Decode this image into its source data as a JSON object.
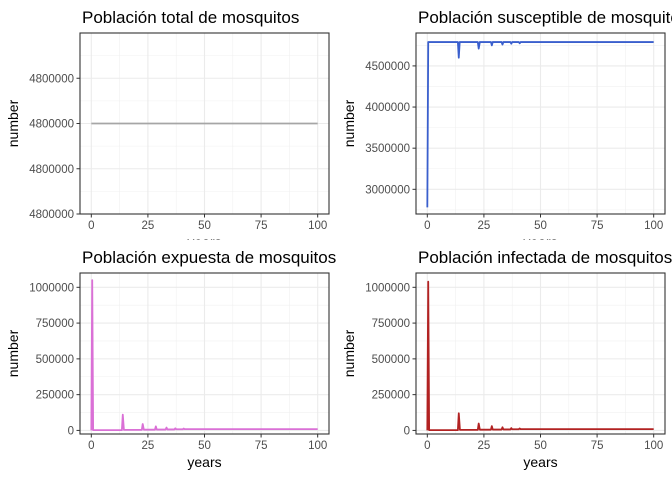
{
  "chart_data": [
    {
      "type": "line",
      "title": "Población total de mosquitos",
      "xlabel": "years",
      "ylabel": "number",
      "xlim": [
        -5,
        105
      ],
      "ylim": [
        0,
        4
      ],
      "xticks": [
        0,
        25,
        50,
        75,
        100
      ],
      "yticks": [
        0,
        1,
        2,
        3
      ],
      "ytick_labels": [
        "4800000",
        "4800000",
        "4800000",
        "4800000"
      ],
      "grid": true,
      "color": "#a6a6a6",
      "x": [
        0,
        100
      ],
      "y": [
        2,
        2
      ]
    },
    {
      "type": "line",
      "title": "Población susceptible de mosquitos",
      "xlabel": "years",
      "ylabel": "number",
      "xlim": [
        -5,
        105
      ],
      "ylim": [
        2700000,
        4900000
      ],
      "xticks": [
        0,
        25,
        50,
        75,
        100
      ],
      "yticks": [
        3000000,
        3500000,
        4000000,
        4500000
      ],
      "ytick_labels": [
        "3000000",
        "3500000",
        "4000000",
        "4500000"
      ],
      "grid": true,
      "color": "#3a5fcd",
      "x": [
        0,
        0.4,
        0.8,
        13.5,
        13.9,
        14.3,
        22.3,
        22.7,
        23.2,
        28.1,
        28.5,
        28.9,
        32.8,
        33.2,
        33.6,
        36.7,
        37.1,
        37.5,
        40.4,
        40.8,
        41.2,
        100
      ],
      "y": [
        2780000,
        4790000,
        4790000,
        4790000,
        4600000,
        4790000,
        4790000,
        4710000,
        4790000,
        4790000,
        4750000,
        4790000,
        4790000,
        4760000,
        4790000,
        4790000,
        4770000,
        4790000,
        4790000,
        4775000,
        4790000,
        4790000
      ]
    },
    {
      "type": "line",
      "title": "Población expuesta de mosquitos",
      "xlabel": "years",
      "ylabel": "number",
      "xlim": [
        -5,
        105
      ],
      "ylim": [
        -25000,
        1100000
      ],
      "xticks": [
        0,
        25,
        50,
        75,
        100
      ],
      "yticks": [
        0,
        250000,
        500000,
        750000,
        1000000
      ],
      "ytick_labels": [
        "0",
        "250000",
        "500000",
        "750000",
        "1000000"
      ],
      "grid": true,
      "color": "#da70d6",
      "x": [
        0,
        0.4,
        0.8,
        13.5,
        13.9,
        14.4,
        22.3,
        22.7,
        23.2,
        28.1,
        28.5,
        28.9,
        32.8,
        33.2,
        33.6,
        36.7,
        37.1,
        37.5,
        40.4,
        40.8,
        41.2,
        100
      ],
      "y": [
        0,
        1050000,
        2000,
        2000,
        110000,
        4000,
        4000,
        45000,
        5000,
        5000,
        28000,
        6000,
        6000,
        20000,
        7000,
        7000,
        15000,
        8000,
        8000,
        13000,
        9000,
        9000
      ]
    },
    {
      "type": "line",
      "title": "Población infectada de mosquitos",
      "xlabel": "years",
      "ylabel": "number",
      "xlim": [
        -5,
        105
      ],
      "ylim": [
        -25000,
        1100000
      ],
      "xticks": [
        0,
        25,
        50,
        75,
        100
      ],
      "yticks": [
        0,
        250000,
        500000,
        750000,
        1000000
      ],
      "ytick_labels": [
        "0",
        "250000",
        "500000",
        "750000",
        "1000000"
      ],
      "grid": true,
      "color": "#b22222",
      "x": [
        0,
        0.4,
        0.8,
        13.5,
        13.9,
        14.4,
        22.3,
        22.7,
        23.2,
        28.1,
        28.5,
        28.9,
        32.8,
        33.2,
        33.6,
        36.7,
        37.1,
        37.5,
        40.4,
        40.8,
        41.2,
        100
      ],
      "y": [
        0,
        1040000,
        2000,
        2000,
        120000,
        4000,
        4000,
        48000,
        5000,
        5000,
        30000,
        6000,
        6000,
        22000,
        7000,
        7000,
        16000,
        8000,
        8000,
        14000,
        9000,
        9000
      ]
    }
  ]
}
